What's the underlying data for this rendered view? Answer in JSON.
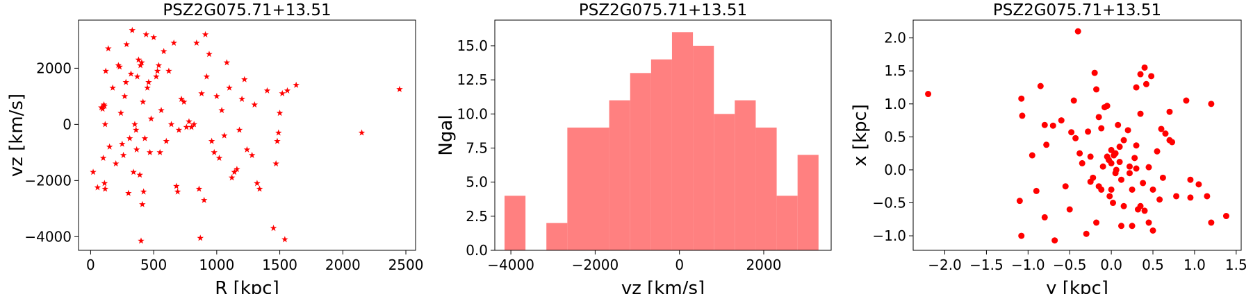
{
  "chart_data": [
    {
      "type": "scatter",
      "title": "PSZ2G075.71+13.51",
      "xlabel": "R [kpc]",
      "ylabel": "vz [km/s]",
      "color": "#ff0000",
      "marker": "star",
      "x": [
        20,
        55,
        110,
        115,
        100,
        85,
        95,
        105,
        110,
        115,
        120,
        140,
        150,
        175,
        200,
        220,
        230,
        240,
        250,
        260,
        270,
        280,
        285,
        300,
        310,
        320,
        330,
        340,
        350,
        360,
        365,
        370,
        380,
        390,
        395,
        400,
        405,
        410,
        415,
        420,
        430,
        440,
        450,
        460,
        470,
        480,
        500,
        520,
        530,
        540,
        550,
        560,
        580,
        600,
        620,
        640,
        660,
        680,
        690,
        700,
        720,
        740,
        760,
        780,
        800,
        820,
        840,
        860,
        870,
        880,
        900,
        910,
        920,
        940,
        960,
        980,
        1000,
        1020,
        1040,
        1060,
        1080,
        1100,
        1120,
        1140,
        1160,
        1180,
        1200,
        1220,
        1240,
        1280,
        1300,
        1320,
        1340,
        1400,
        1450,
        1470,
        1480,
        1490,
        1500,
        1520,
        1540,
        1560,
        1630,
        2150,
        2450
      ],
      "values": [
        -1700,
        -2250,
        -2100,
        -2300,
        -1200,
        600,
        550,
        700,
        650,
        0,
        1900,
        2700,
        -800,
        1300,
        -1400,
        2100,
        2050,
        400,
        -700,
        -1100,
        1000,
        1500,
        2850,
        -2450,
        -500,
        1800,
        3350,
        -1700,
        0,
        -200,
        -900,
        1700,
        2300,
        -1800,
        2100,
        -4150,
        2200,
        -2850,
        800,
        -2400,
        -500,
        3200,
        1300,
        1500,
        -1000,
        200,
        3100,
        1700,
        1900,
        2100,
        -1000,
        500,
        2600,
        -600,
        1900,
        0,
        2900,
        -2200,
        -2400,
        -200,
        900,
        800,
        -100,
        100,
        -100,
        0,
        2900,
        -2300,
        -4050,
        1100,
        -2700,
        3200,
        1700,
        2500,
        -600,
        -1000,
        1000,
        -1200,
        500,
        -400,
        2200,
        1300,
        -1900,
        -1700,
        -1600,
        -200,
        900,
        1600,
        -900,
        -1100,
        700,
        -2100,
        -2300,
        1200,
        -3700,
        -1400,
        -600,
        -300,
        400,
        1100,
        -4100,
        1200,
        1400,
        -300,
        1250
      ],
      "xlim": [
        -96,
        2577
      ],
      "ylim": [
        -4486,
        3714
      ],
      "xticks": [
        0,
        500,
        1000,
        1500,
        2000,
        2500
      ],
      "yticks": [
        {
          "value": -4000,
          "label": "−4000"
        },
        {
          "value": -2000,
          "label": "−2000"
        },
        0,
        2000
      ]
    },
    {
      "type": "histogram",
      "title": "PSZ2G075.71+13.51",
      "xlabel": "vz [km/s]",
      "ylabel": "Ngal",
      "color": "#ff8080",
      "bins": [
        -4150,
        -3653,
        -3157,
        -2660,
        -2163,
        -1667,
        -1170,
        -673,
        -177,
        320,
        817,
        1313,
        1810,
        2307,
        2803,
        3300
      ],
      "counts": [
        4,
        0,
        2,
        9,
        9,
        11,
        13,
        14,
        16,
        15,
        10,
        11,
        9,
        4,
        7
      ],
      "xlim": [
        -4381,
        3600
      ],
      "ylim": [
        0,
        16.88
      ],
      "xticks": [
        {
          "value": -4000,
          "label": "−4000"
        },
        {
          "value": -2000,
          "label": "−2000"
        },
        0,
        2000
      ],
      "yticks": [
        {
          "value": 0,
          "label": "0.0"
        },
        2.5,
        {
          "value": 5,
          "label": "5.0"
        },
        7.5,
        {
          "value": 10,
          "label": "10.0"
        },
        12.5,
        {
          "value": 15,
          "label": "15.0"
        }
      ]
    },
    {
      "type": "scatter",
      "title": "PSZ2G075.71+13.51",
      "xlabel": "y [kpc]",
      "ylabel": "x [kpc]",
      "color": "#ff0000",
      "marker": "circle",
      "x": [
        -2.2,
        -1.08,
        -1.07,
        -1.1,
        -1.08,
        -0.95,
        -0.9,
        -0.85,
        -0.8,
        -0.78,
        -0.8,
        -0.7,
        -0.68,
        -0.6,
        -0.55,
        -0.48,
        -0.45,
        -0.43,
        -0.4,
        -0.38,
        -0.35,
        -0.3,
        -0.28,
        -0.25,
        -0.22,
        -0.2,
        -0.18,
        -0.15,
        -0.18,
        -0.15,
        -0.12,
        -0.12,
        -0.1,
        -0.08,
        -0.05,
        -0.05,
        -0.03,
        -0.02,
        0,
        0,
        0.02,
        0.03,
        0.05,
        0.06,
        0.05,
        0.08,
        0.1,
        0.1,
        0.12,
        0.12,
        0.15,
        0.2,
        0.22,
        0.25,
        0.25,
        0.28,
        0.3,
        0.32,
        0.3,
        0.35,
        0.35,
        0.38,
        0.4,
        0.4,
        0.42,
        0.45,
        0.45,
        0.48,
        0.5,
        0.5,
        0.55,
        0.58,
        0.6,
        0.62,
        0.65,
        0.7,
        0.7,
        0.73,
        0.78,
        0.9,
        0.95,
        0.95,
        1.05,
        1.15,
        1.2,
        1.2,
        1.38,
        0.3,
        -0.25,
        0.15,
        0.22,
        -0.5,
        0.35,
        0
      ],
      "values": [
        1.15,
        1.08,
        0.82,
        -0.47,
        -1.0,
        0.22,
        -0.32,
        1.27,
        0.68,
        0.38,
        -0.72,
        0.67,
        -1.07,
        0.75,
        -0.25,
        0.57,
        1.05,
        0.48,
        2.1,
        0.25,
        0.1,
        -0.97,
        0.58,
        0.2,
        -0.12,
        1.47,
        1.22,
        -0.25,
        -0.8,
        0.8,
        0.63,
        -0.3,
        0.05,
        0.95,
        0.97,
        0.2,
        0.15,
        -0.4,
        0.3,
        0.1,
        -0.5,
        0.22,
        0.25,
        0,
        -0.05,
        0.68,
        0.35,
        0.12,
        -0.85,
        -0.15,
        0.45,
        0.6,
        -0.05,
        -0.3,
        -0.85,
        0.18,
        0.02,
        -0.6,
        0.37,
        1.45,
        -0.55,
        -0.2,
        1.55,
        -0.62,
        1.3,
        0.04,
        -0.8,
        1.42,
        -0.92,
        -0.3,
        0.28,
        -0.45,
        0.62,
        -0.12,
        0.55,
        0.88,
        0.45,
        0.42,
        -0.4,
        1.05,
        -0.15,
        -0.42,
        -0.22,
        -0.4,
        1.0,
        -0.8,
        -0.7,
        1.25,
        -0.18,
        -0.55,
        0.05,
        -0.6,
        0.85,
        -0.3
      ],
      "xlim": [
        -2.38,
        1.56
      ],
      "ylim": [
        -1.22,
        2.27
      ],
      "xticks": [
        {
          "value": -2,
          "label": "−2.0"
        },
        {
          "value": -1.5,
          "label": "−1.5"
        },
        {
          "value": -1,
          "label": "−1.0"
        },
        {
          "value": -0.5,
          "label": "−0.5"
        },
        {
          "value": 0,
          "label": "0.0"
        },
        0.5,
        {
          "value": 1,
          "label": "1.0"
        },
        1.5
      ],
      "yticks": [
        {
          "value": -1,
          "label": "−1.0"
        },
        {
          "value": -0.5,
          "label": "−0.5"
        },
        {
          "value": 0,
          "label": "0.0"
        },
        0.5,
        {
          "value": 1,
          "label": "1.0"
        },
        1.5,
        {
          "value": 2,
          "label": "2.0"
        }
      ]
    }
  ]
}
